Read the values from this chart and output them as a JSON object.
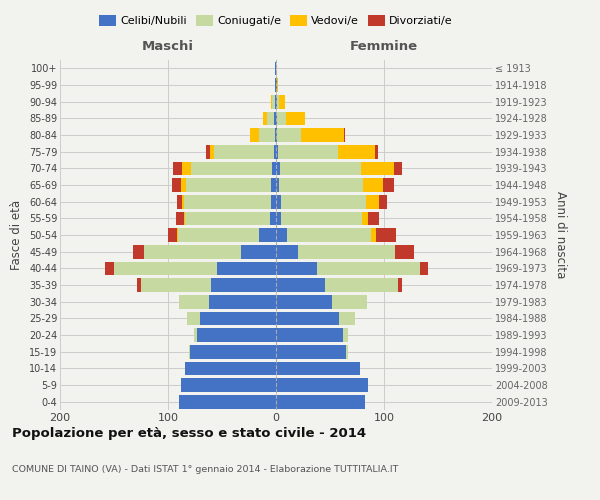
{
  "age_groups": [
    "0-4",
    "5-9",
    "10-14",
    "15-19",
    "20-24",
    "25-29",
    "30-34",
    "35-39",
    "40-44",
    "45-49",
    "50-54",
    "55-59",
    "60-64",
    "65-69",
    "70-74",
    "75-79",
    "80-84",
    "85-89",
    "90-94",
    "95-99",
    "100+"
  ],
  "birth_years": [
    "2009-2013",
    "2004-2008",
    "1999-2003",
    "1994-1998",
    "1989-1993",
    "1984-1988",
    "1979-1983",
    "1974-1978",
    "1969-1973",
    "1964-1968",
    "1959-1963",
    "1954-1958",
    "1949-1953",
    "1944-1948",
    "1939-1943",
    "1934-1938",
    "1929-1933",
    "1924-1928",
    "1919-1923",
    "1914-1918",
    "≤ 1913"
  ],
  "males_celibi": [
    90,
    88,
    84,
    80,
    73,
    70,
    62,
    60,
    55,
    32,
    16,
    6,
    5,
    5,
    4,
    2,
    1,
    2,
    1,
    1,
    1
  ],
  "males_coniugati": [
    0,
    0,
    0,
    1,
    3,
    12,
    28,
    65,
    95,
    90,
    75,
    78,
    80,
    78,
    75,
    55,
    15,
    6,
    3,
    0,
    0
  ],
  "males_vedovi": [
    0,
    0,
    0,
    0,
    0,
    0,
    0,
    0,
    0,
    0,
    1,
    1,
    2,
    5,
    8,
    4,
    8,
    4,
    1,
    0,
    0
  ],
  "males_divorziati": [
    0,
    0,
    0,
    0,
    0,
    0,
    0,
    4,
    8,
    10,
    8,
    8,
    5,
    8,
    8,
    4,
    0,
    0,
    0,
    0,
    0
  ],
  "females_nubili": [
    82,
    85,
    78,
    65,
    62,
    58,
    52,
    45,
    38,
    20,
    10,
    5,
    5,
    3,
    4,
    2,
    1,
    1,
    1,
    1,
    0
  ],
  "females_coniugate": [
    0,
    0,
    0,
    2,
    5,
    15,
    32,
    68,
    95,
    90,
    78,
    75,
    78,
    78,
    75,
    55,
    22,
    8,
    2,
    0,
    0
  ],
  "females_vedove": [
    0,
    0,
    0,
    0,
    0,
    0,
    0,
    0,
    0,
    0,
    5,
    5,
    12,
    18,
    30,
    35,
    40,
    18,
    5,
    1,
    0
  ],
  "females_divorziate": [
    0,
    0,
    0,
    0,
    0,
    0,
    0,
    4,
    8,
    18,
    18,
    10,
    8,
    10,
    8,
    2,
    1,
    0,
    0,
    0,
    0
  ],
  "color_celibi": "#4472c4",
  "color_coniugati": "#c5d9a0",
  "color_vedovi": "#ffc000",
  "color_divorziati": "#c0392b",
  "xlim": 200,
  "title": "Popolazione per età, sesso e stato civile - 2014",
  "subtitle": "COMUNE DI TAINO (VA) - Dati ISTAT 1° gennaio 2014 - Elaborazione TUTTITALIA.IT",
  "ylabel_left": "Fasce di età",
  "ylabel_right": "Anni di nascita",
  "bg_color": "#f2f2ee",
  "maschi_label": "Maschi",
  "femmine_label": "Femmine",
  "legend_labels": [
    "Celibi/Nubili",
    "Coniugati/e",
    "Vedovi/e",
    "Divorziati/e"
  ]
}
